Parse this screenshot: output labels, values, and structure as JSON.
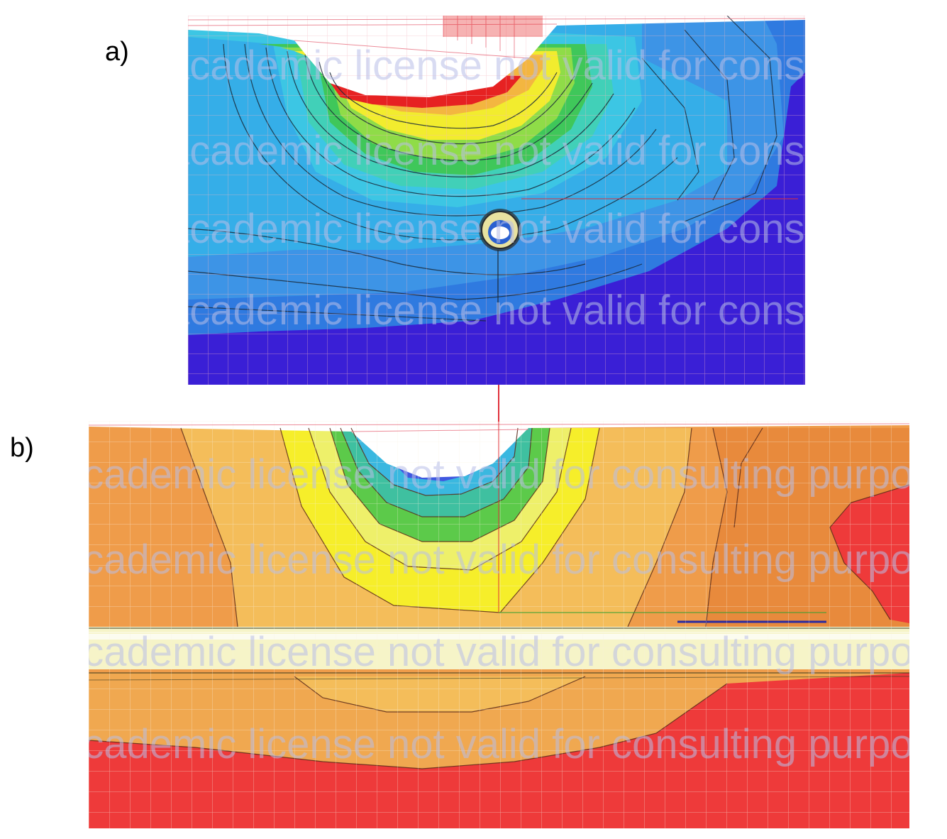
{
  "panels": {
    "a": {
      "label": "a)"
    },
    "b": {
      "label": "b)"
    }
  },
  "watermark": {
    "text": "academic license not valid for consulting purposes"
  },
  "colors": {
    "deep_blue": "#3a1fd6",
    "mid_blue": "#2f7ae0",
    "light_blue": "#36b6ea",
    "cyan": "#3fd0e6",
    "green": "#3fc75a",
    "yellow": "#f6ee2a",
    "orange": "#f0a850",
    "red": "#ee3a3a",
    "mesh_pink": "#f2a0a8",
    "mesh_yellow": "#e8e870"
  }
}
